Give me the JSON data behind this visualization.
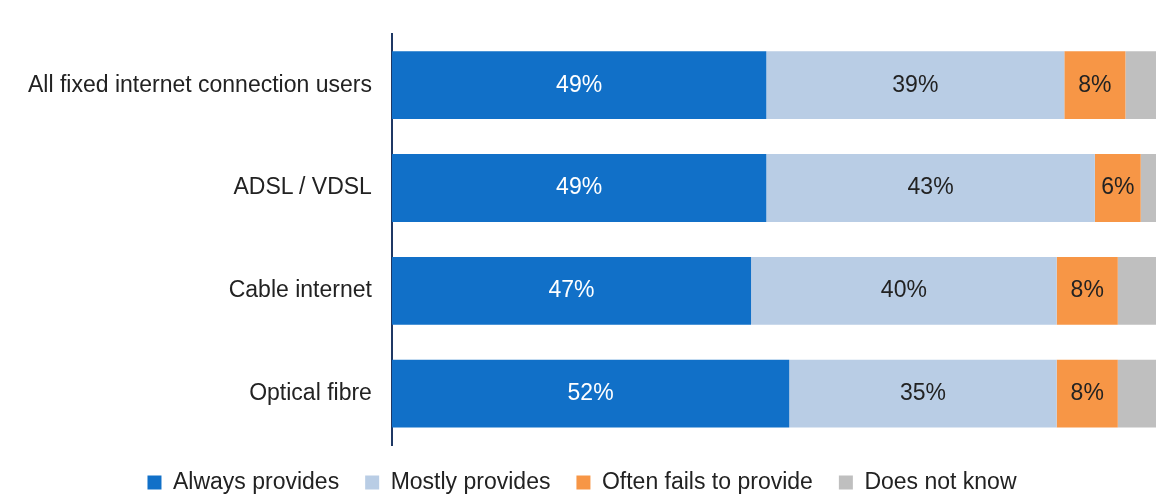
{
  "chart_data": {
    "type": "bar",
    "orientation": "horizontal",
    "stacked": true,
    "categories": [
      "All fixed internet connection users",
      "ADSL / VDSL",
      "Cable internet",
      "Optical fibre"
    ],
    "series": [
      {
        "name": "Always provides",
        "color": "#1170c8",
        "values": [
          49,
          49,
          47,
          52
        ],
        "value_labels": [
          "49%",
          "49%",
          "47%",
          "52%"
        ]
      },
      {
        "name": "Mostly provides",
        "color": "#b9cde5",
        "values": [
          39,
          43,
          40,
          35
        ],
        "value_labels": [
          "39%",
          "43%",
          "40%",
          "35%"
        ]
      },
      {
        "name": "Often fails to provide",
        "color": "#f79646",
        "values": [
          8,
          6,
          8,
          8
        ],
        "value_labels": [
          "8%",
          "6%",
          "8%",
          "8%"
        ]
      },
      {
        "name": "Does not know",
        "color": "#bfbfbf",
        "values": [
          4,
          2,
          5,
          5
        ],
        "value_labels": [
          null,
          null,
          null,
          null
        ]
      }
    ],
    "xlim": [
      0,
      100
    ],
    "tick_labels": "y",
    "grid": false,
    "legend": "bottom"
  }
}
